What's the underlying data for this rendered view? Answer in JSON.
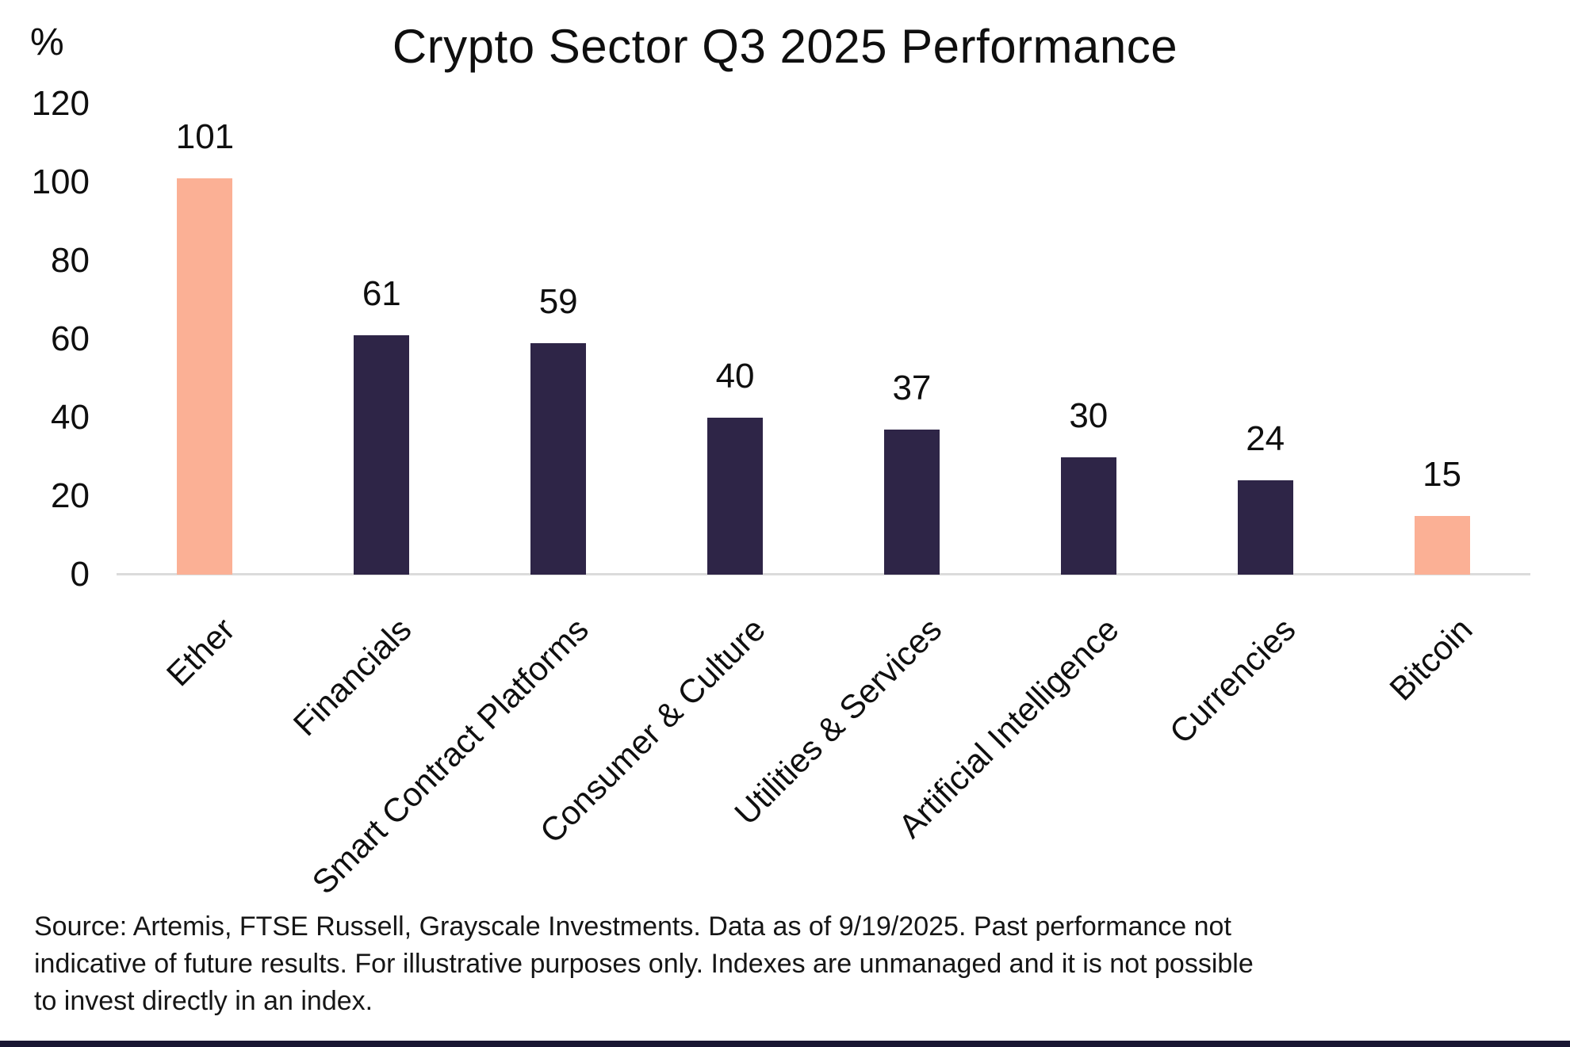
{
  "chart_data": {
    "type": "bar",
    "title": "Crypto Sector Q3 2025 Performance",
    "ylabel": "%",
    "xlabel": "",
    "categories": [
      "Ether",
      "Financials",
      "Smart Contract Platforms",
      "Consumer & Culture",
      "Utilities & Services",
      "Artificial Intelligence",
      "Currencies",
      "Bitcoin"
    ],
    "values": [
      101,
      61,
      59,
      40,
      37,
      30,
      24,
      15
    ],
    "bar_colors": [
      "#FBB095",
      "#2E2547",
      "#2E2547",
      "#2E2547",
      "#2E2547",
      "#2E2547",
      "#2E2547",
      "#FBB095"
    ],
    "value_labels": [
      "101",
      "61",
      "59",
      "40",
      "37",
      "30",
      "24",
      "15"
    ],
    "yticks": [
      0,
      20,
      40,
      60,
      80,
      100,
      120
    ],
    "ylim": [
      0,
      120
    ],
    "grid": false,
    "legend": "none",
    "value_labels_shown": true
  },
  "colors": {
    "accent_peach": "#FBB095",
    "accent_navy": "#2E2547",
    "axis_line": "#DBDBDB",
    "footer_bar": "#191632",
    "text": "#0f0f0f"
  },
  "source_note": {
    "lines": [
      "Source: Artemis, FTSE Russell, Grayscale Investments. Data as of 9/19/2025. Past performance not",
      "indicative of future results. For illustrative purposes only. Indexes are unmanaged and it is not possible",
      "to invest directly in an index."
    ]
  }
}
